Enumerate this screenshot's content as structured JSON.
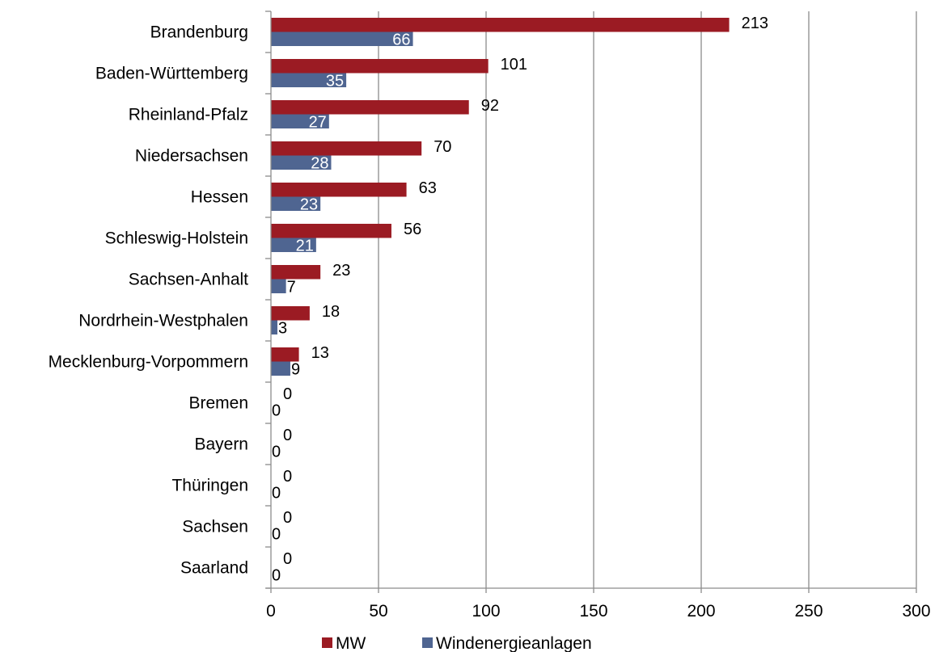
{
  "chart_data": {
    "type": "bar",
    "orientation": "horizontal",
    "categories": [
      "Brandenburg",
      "Baden-Württemberg",
      "Rheinland-Pfalz",
      "Niedersachsen",
      "Hessen",
      "Schleswig-Holstein",
      "Sachsen-Anhalt",
      "Nordrhein-Westphalen",
      "Mecklenburg-Vorpommern",
      "Bremen",
      "Bayern",
      "Thüringen",
      "Sachsen",
      "Saarland"
    ],
    "series": [
      {
        "name": "MW",
        "color": "#9b1b23",
        "values": [
          213,
          101,
          92,
          70,
          63,
          56,
          23,
          18,
          13,
          0,
          0,
          0,
          0,
          0
        ]
      },
      {
        "name": "Windenergieanlagen",
        "color": "#4f6591",
        "values": [
          66,
          35,
          27,
          28,
          23,
          21,
          7,
          3,
          9,
          0,
          0,
          0,
          0,
          0
        ]
      }
    ],
    "xlim": [
      0,
      300
    ],
    "xticks": [
      0,
      50,
      100,
      150,
      200,
      250,
      300
    ],
    "grid": true,
    "legend": "bottom",
    "title": "",
    "xlabel": "",
    "ylabel": ""
  }
}
